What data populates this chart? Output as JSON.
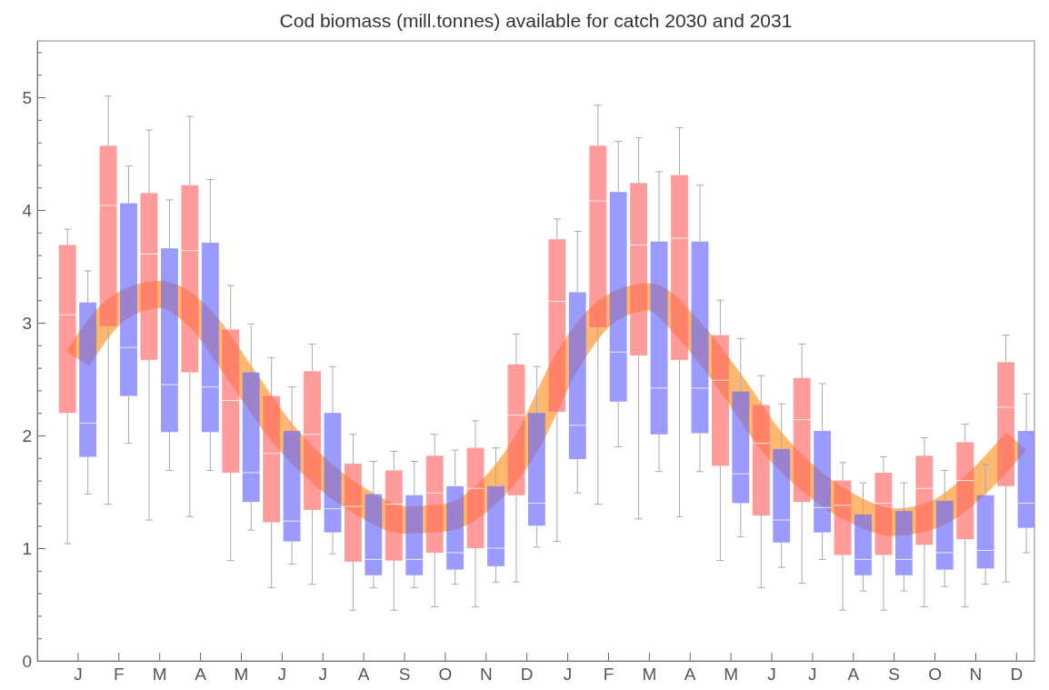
{
  "chart_data": {
    "type": "box",
    "title": "Cod biomass (mill.tonnes) available for catch 2030 and 2031",
    "categories": [
      "J",
      "F",
      "M",
      "A",
      "M",
      "J",
      "J",
      "A",
      "S",
      "O",
      "N",
      "D",
      "J",
      "F",
      "M",
      "A",
      "M",
      "J",
      "J",
      "A",
      "S",
      "O",
      "N",
      "D"
    ],
    "ylim": [
      0,
      5.5
    ],
    "yticks": [
      0,
      {
        "value": 0.2,
        "label": null
      },
      {
        "value": 0.4,
        "label": null
      },
      {
        "value": 0.6,
        "label": null
      },
      {
        "value": 0.8,
        "label": null
      },
      1,
      {
        "value": 1.2,
        "label": null
      },
      {
        "value": 1.4,
        "label": null
      },
      {
        "value": 1.6,
        "label": null
      },
      {
        "value": 1.8,
        "label": null
      },
      2,
      {
        "value": 2.2,
        "label": null
      },
      {
        "value": 2.4,
        "label": null
      },
      {
        "value": 2.6,
        "label": null
      },
      {
        "value": 2.8,
        "label": null
      },
      3,
      {
        "value": 3.2,
        "label": null
      },
      {
        "value": 3.4,
        "label": null
      },
      {
        "value": 3.6,
        "label": null
      },
      {
        "value": 3.8,
        "label": null
      },
      4,
      {
        "value": 4.2,
        "label": null
      },
      {
        "value": 4.4,
        "label": null
      },
      {
        "value": 4.6,
        "label": null
      },
      {
        "value": 4.8,
        "label": null
      },
      5,
      {
        "value": 5.2,
        "label": null
      },
      {
        "value": 5.4,
        "label": null
      }
    ],
    "series": [
      {
        "type": "line",
        "color": "#ffa040",
        "values": [
          2.68,
          3.13,
          3.25,
          3.04,
          2.54,
          2.03,
          1.66,
          1.4,
          1.25,
          1.27,
          1.47,
          1.93,
          2.66,
          3.11,
          3.23,
          2.93,
          2.47,
          1.95,
          1.59,
          1.35,
          1.23,
          1.3,
          1.56,
          1.95
        ]
      },
      {
        "color": "#ff6666",
        "boxes": [
          {
            "low": 1.04,
            "q1": 2.2,
            "median": 3.07,
            "q3": 3.69,
            "high": 3.83
          },
          {
            "low": 1.39,
            "q1": 2.97,
            "median": 4.04,
            "q3": 4.57,
            "high": 5.01
          },
          {
            "low": 1.25,
            "q1": 2.67,
            "median": 3.61,
            "q3": 4.15,
            "high": 4.71
          },
          {
            "low": 1.28,
            "q1": 2.56,
            "median": 3.64,
            "q3": 4.22,
            "high": 4.83
          },
          {
            "low": 0.89,
            "q1": 1.67,
            "median": 2.31,
            "q3": 2.94,
            "high": 3.33
          },
          {
            "low": 0.65,
            "q1": 1.23,
            "median": 1.84,
            "q3": 2.35,
            "high": 2.69
          },
          {
            "low": 0.68,
            "q1": 1.34,
            "median": 2.01,
            "q3": 2.57,
            "high": 2.81
          },
          {
            "low": 0.45,
            "q1": 0.88,
            "median": 1.37,
            "q3": 1.75,
            "high": 2.01
          },
          {
            "low": 0.45,
            "q1": 0.89,
            "median": 1.39,
            "q3": 1.69,
            "high": 1.86
          },
          {
            "low": 0.48,
            "q1": 0.96,
            "median": 1.49,
            "q3": 1.82,
            "high": 2.01
          },
          {
            "low": 0.48,
            "q1": 1.0,
            "median": 1.53,
            "q3": 1.89,
            "high": 2.13
          },
          {
            "low": 0.7,
            "q1": 1.47,
            "median": 2.18,
            "q3": 2.63,
            "high": 2.9
          },
          {
            "low": 1.06,
            "q1": 2.21,
            "median": 3.19,
            "q3": 3.74,
            "high": 3.92
          },
          {
            "low": 1.39,
            "q1": 2.96,
            "median": 4.08,
            "q3": 4.57,
            "high": 4.93
          },
          {
            "low": 1.26,
            "q1": 2.71,
            "median": 3.69,
            "q3": 4.24,
            "high": 4.64
          },
          {
            "low": 1.28,
            "q1": 2.67,
            "median": 3.75,
            "q3": 4.31,
            "high": 4.73
          },
          {
            "low": 0.89,
            "q1": 1.73,
            "median": 2.49,
            "q3": 2.89,
            "high": 3.2
          },
          {
            "low": 0.65,
            "q1": 1.29,
            "median": 1.93,
            "q3": 2.27,
            "high": 2.53
          },
          {
            "low": 0.69,
            "q1": 1.41,
            "median": 2.14,
            "q3": 2.51,
            "high": 2.81
          },
          {
            "low": 0.45,
            "q1": 0.94,
            "median": 1.38,
            "q3": 1.6,
            "high": 1.76
          },
          {
            "low": 0.45,
            "q1": 0.94,
            "median": 1.4,
            "q3": 1.67,
            "high": 1.81
          },
          {
            "low": 0.48,
            "q1": 1.03,
            "median": 1.53,
            "q3": 1.82,
            "high": 1.98
          },
          {
            "low": 0.48,
            "q1": 1.08,
            "median": 1.6,
            "q3": 1.94,
            "high": 2.1
          },
          {
            "low": 0.7,
            "q1": 1.55,
            "median": 2.25,
            "q3": 2.65,
            "high": 2.89
          }
        ]
      },
      {
        "color": "#6666ff",
        "boxes": [
          {
            "low": 1.48,
            "q1": 1.81,
            "median": 2.11,
            "q3": 3.18,
            "high": 3.46
          },
          {
            "low": 1.93,
            "q1": 2.35,
            "median": 2.78,
            "q3": 4.06,
            "high": 4.39
          },
          {
            "low": 1.69,
            "q1": 2.03,
            "median": 2.45,
            "q3": 3.66,
            "high": 4.09
          },
          {
            "low": 1.69,
            "q1": 2.03,
            "median": 2.43,
            "q3": 3.71,
            "high": 4.27
          },
          {
            "low": 1.16,
            "q1": 1.41,
            "median": 1.67,
            "q3": 2.56,
            "high": 2.99
          },
          {
            "low": 0.86,
            "q1": 1.06,
            "median": 1.24,
            "q3": 2.04,
            "high": 2.43
          },
          {
            "low": 0.95,
            "q1": 1.14,
            "median": 1.35,
            "q3": 2.2,
            "high": 2.61
          },
          {
            "low": 0.65,
            "q1": 0.76,
            "median": 0.9,
            "q3": 1.48,
            "high": 1.77
          },
          {
            "low": 0.65,
            "q1": 0.76,
            "median": 0.9,
            "q3": 1.47,
            "high": 1.77
          },
          {
            "low": 0.68,
            "q1": 0.81,
            "median": 0.96,
            "q3": 1.55,
            "high": 1.87
          },
          {
            "low": 0.7,
            "q1": 0.84,
            "median": 1.0,
            "q3": 1.55,
            "high": 1.89
          },
          {
            "low": 1.01,
            "q1": 1.2,
            "median": 1.4,
            "q3": 2.2,
            "high": 2.61
          },
          {
            "low": 1.49,
            "q1": 1.79,
            "median": 2.09,
            "q3": 3.27,
            "high": 3.81
          },
          {
            "low": 1.9,
            "q1": 2.3,
            "median": 2.74,
            "q3": 4.16,
            "high": 4.61
          },
          {
            "low": 1.68,
            "q1": 2.01,
            "median": 2.42,
            "q3": 3.72,
            "high": 4.34
          },
          {
            "low": 1.68,
            "q1": 2.02,
            "median": 2.42,
            "q3": 3.72,
            "high": 4.22
          },
          {
            "low": 1.1,
            "q1": 1.4,
            "median": 1.66,
            "q3": 2.39,
            "high": 2.86
          },
          {
            "low": 0.83,
            "q1": 1.05,
            "median": 1.25,
            "q3": 1.88,
            "high": 2.28
          },
          {
            "low": 0.9,
            "q1": 1.14,
            "median": 1.36,
            "q3": 2.04,
            "high": 2.46
          },
          {
            "low": 0.62,
            "q1": 0.76,
            "median": 0.9,
            "q3": 1.3,
            "high": 1.58
          },
          {
            "low": 0.62,
            "q1": 0.76,
            "median": 0.9,
            "q3": 1.33,
            "high": 1.58
          },
          {
            "low": 0.66,
            "q1": 0.81,
            "median": 0.96,
            "q3": 1.42,
            "high": 1.69
          },
          {
            "low": 0.68,
            "q1": 0.82,
            "median": 0.98,
            "q3": 1.47,
            "high": 1.74
          },
          {
            "low": 0.96,
            "q1": 1.18,
            "median": 1.4,
            "q3": 2.04,
            "high": 2.37
          }
        ]
      }
    ]
  }
}
